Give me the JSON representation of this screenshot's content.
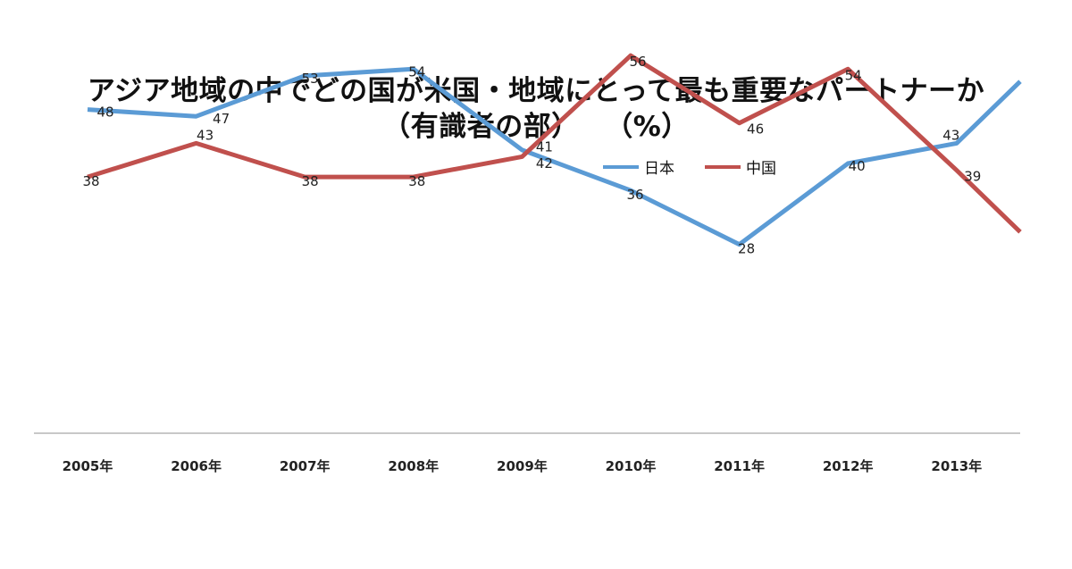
{
  "chart_data": {
    "type": "line",
    "title_line1": "アジア地域の中でどの国が米国・地域にとって最も重要なパートナーか",
    "title_line2": "（有識者の部）",
    "unit": "（%）",
    "categories": [
      "2005年",
      "2006年",
      "2007年",
      "2008年",
      "2009年",
      "2010年",
      "2011年",
      "2012年",
      "2013年"
    ],
    "series": [
      {
        "name": "日本",
        "color": "#5B9BD5",
        "values": [
          48,
          47,
          53,
          54,
          42,
          36,
          28,
          40,
          43
        ]
      },
      {
        "name": "中国",
        "color": "#C0504D",
        "values": [
          38,
          43,
          38,
          38,
          41,
          56,
          46,
          54,
          39
        ]
      }
    ],
    "ylim": [
      0,
      100
    ],
    "grid": false,
    "legend_position": "top-right"
  }
}
